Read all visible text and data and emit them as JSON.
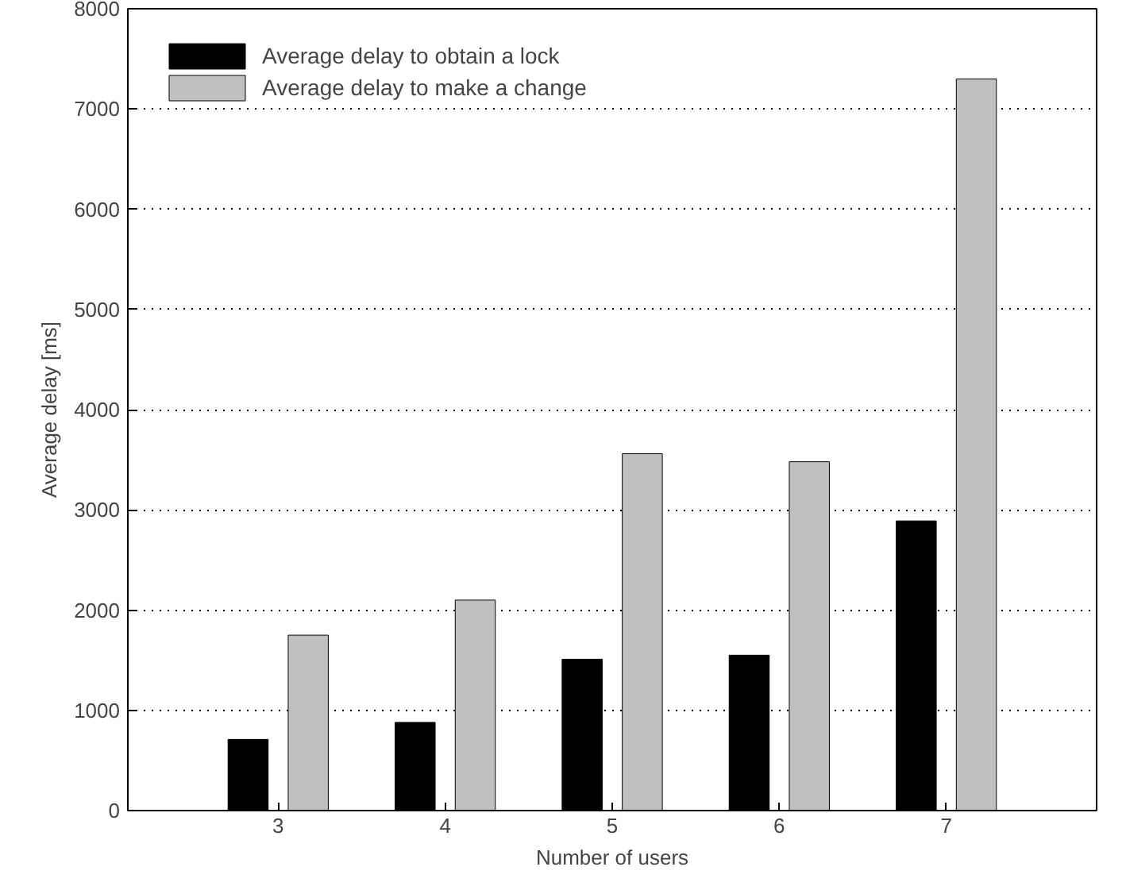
{
  "chart_data": {
    "type": "bar",
    "xlabel": "Number of users",
    "ylabel": "Average delay [ms]",
    "categories": [
      "3",
      "4",
      "5",
      "6",
      "7"
    ],
    "series": [
      {
        "name": "Average delay to obtain a lock",
        "color": "#000000",
        "values": [
          710,
          880,
          1510,
          1550,
          2890
        ]
      },
      {
        "name": "Average delay to make a change",
        "color": "#c0c0c0",
        "values": [
          1750,
          2100,
          3560,
          3480,
          7300
        ]
      }
    ],
    "ylim": [
      0,
      8000
    ],
    "yticks": [
      0,
      1000,
      2000,
      3000,
      4000,
      5000,
      6000,
      7000,
      8000
    ],
    "grid": "y",
    "legend": "top left"
  }
}
